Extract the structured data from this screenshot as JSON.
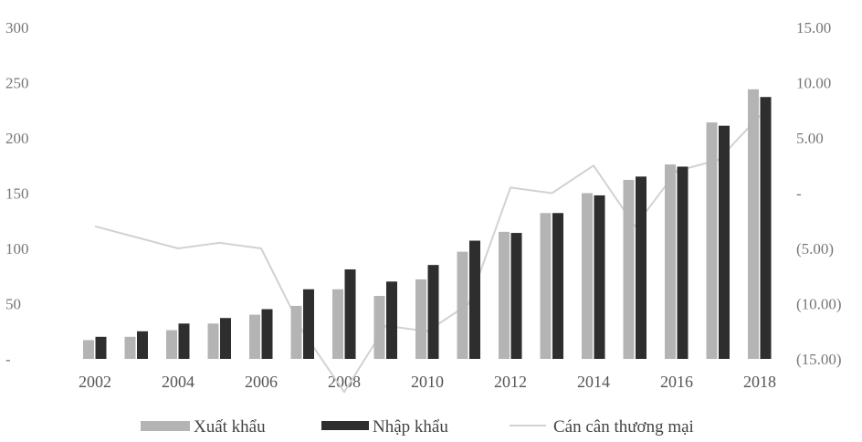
{
  "chart_data": {
    "type": "bar",
    "title": "",
    "x_tick_labels": [
      "2002",
      "2004",
      "2006",
      "2008",
      "2010",
      "2012",
      "2014",
      "2016",
      "2018"
    ],
    "categories": [
      "2002",
      "2003",
      "2004",
      "2005",
      "2006",
      "2007",
      "2008",
      "2009",
      "2010",
      "2011",
      "2012",
      "2013",
      "2014",
      "2015",
      "2016",
      "2017",
      "2018"
    ],
    "y_left": {
      "ticks": [
        "300",
        "250",
        "200",
        "150",
        "100",
        "50",
        "-"
      ],
      "ylim": [
        0,
        300
      ]
    },
    "y_right": {
      "ticks": [
        "15.00",
        "10.00",
        "5.00",
        "-",
        "(5.00)",
        "(10.00)",
        "(15.00)"
      ],
      "ylim": [
        -15,
        15
      ]
    },
    "grid": false,
    "legend_position": "bottom",
    "series": [
      {
        "name": "Xuất khẩu",
        "type": "bar",
        "axis": "left",
        "color": "#b4b4b4",
        "values": [
          17,
          20,
          26,
          32,
          40,
          48,
          63,
          57,
          72,
          97,
          115,
          132,
          150,
          162,
          176,
          214,
          244
        ]
      },
      {
        "name": "Nhập khẩu",
        "type": "bar",
        "axis": "left",
        "color": "#2e2e2e",
        "values": [
          20,
          25,
          32,
          37,
          45,
          63,
          81,
          70,
          85,
          107,
          114,
          132,
          148,
          165,
          174,
          211,
          237
        ]
      },
      {
        "name": "Cán cân thương mại",
        "type": "line",
        "axis": "right",
        "color": "#d2d2d2",
        "values": [
          -3.0,
          -4.0,
          -5.0,
          -4.5,
          -5.0,
          -12.5,
          -18.0,
          -12.0,
          -12.5,
          -10.0,
          0.5,
          0.0,
          2.5,
          -3.0,
          2.0,
          3.0,
          7.0
        ]
      }
    ]
  }
}
